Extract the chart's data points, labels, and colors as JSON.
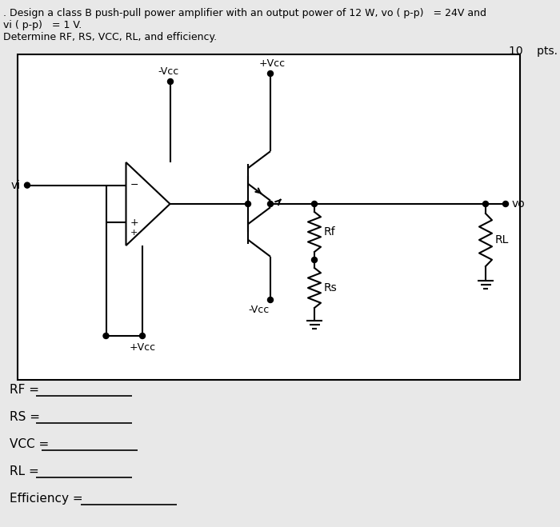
{
  "title_line1": ". Design a class B push-pull power amplifier with an output power of 12 W, vo ( p-p)   = 24V and",
  "title_line2": "vi ( p-p)   = 1 V.",
  "title_line3": "Determine RF, RS, VCC, RL, and efficiency.",
  "pts_text": "10    pts.",
  "bg_color": "#e8e8e8",
  "box_color": "#ffffff",
  "line_color": "#000000",
  "labels": {
    "vi": "vi",
    "vo": "vo",
    "vcc_top": "+Vcc",
    "vcc_neg_top": "-Vcc",
    "vcc_bottom": "+Vcc",
    "vcc_neg_bottom": "-Vcc",
    "Rf": "Rf",
    "Rs": "Rs",
    "RL": "RL"
  },
  "answer_labels": [
    "RF =",
    "RS =",
    "VCC =",
    "RL =",
    "Efficiency ="
  ],
  "figsize": [
    7.0,
    6.59
  ],
  "dpi": 100
}
